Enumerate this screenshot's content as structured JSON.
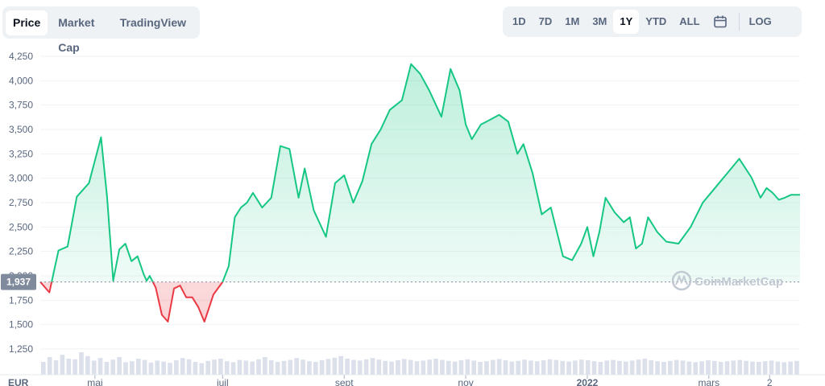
{
  "tabs": [
    {
      "label": "Price",
      "active": true
    },
    {
      "label": "Market Cap",
      "active": false
    },
    {
      "label": "TradingView",
      "active": false
    }
  ],
  "ranges": [
    {
      "label": "1D",
      "active": false
    },
    {
      "label": "7D",
      "active": false
    },
    {
      "label": "1M",
      "active": false
    },
    {
      "label": "3M",
      "active": false
    },
    {
      "label": "1Y",
      "active": true
    },
    {
      "label": "YTD",
      "active": false
    },
    {
      "label": "ALL",
      "active": false
    }
  ],
  "calendar_icon": "calendar-icon",
  "log_label": "LOG",
  "watermark": "CoinMarketCap",
  "colors": {
    "up": "#16c784",
    "down": "#ea3943",
    "grid": "#eff2f5",
    "volume": "#cfd6e4",
    "baseline_label_bg": "#808a9d"
  },
  "chart_data": {
    "type": "area",
    "currency_label": "EUR",
    "y_ticks": [
      "1,250",
      "1,500",
      "1,750",
      "2,000",
      "2,250",
      "2,500",
      "2,750",
      "3,000",
      "3,250",
      "3,500",
      "3,750",
      "4,000",
      "4,250"
    ],
    "ylim": [
      1250,
      4250
    ],
    "baseline_value": 1937,
    "baseline_label": "1,937",
    "x_ticks": [
      {
        "label": "mai",
        "x": 0.9
      },
      {
        "label": "juil",
        "x": 3
      },
      {
        "label": "sept",
        "x": 5
      },
      {
        "label": "nov",
        "x": 7
      },
      {
        "label": "2022",
        "x": 9
      },
      {
        "label": "mars",
        "x": 11
      },
      {
        "label": "2",
        "x": 12
      }
    ],
    "xlim": [
      0,
      12.5
    ],
    "series": [
      {
        "x": [
          0,
          0.15,
          0.3,
          0.45,
          0.6,
          0.8,
          1,
          1.1,
          1.2,
          1.3,
          1.4,
          1.5,
          1.6,
          1.7,
          1.75,
          1.8,
          1.9,
          2,
          2.1,
          2.2,
          2.3,
          2.4,
          2.5,
          2.6,
          2.7,
          2.85,
          3,
          3.1,
          3.2,
          3.3,
          3.4,
          3.5,
          3.65,
          3.8,
          3.95,
          4.1,
          4.25,
          4.35,
          4.5,
          4.7,
          4.85,
          5,
          5.15,
          5.3,
          5.45,
          5.6,
          5.75,
          5.95,
          6.1,
          6.25,
          6.4,
          6.6,
          6.75,
          6.9,
          7,
          7.1,
          7.25,
          7.4,
          7.55,
          7.7,
          7.85,
          7.95,
          8.1,
          8.25,
          8.4,
          8.6,
          8.75,
          8.9,
          9,
          9.1,
          9.2,
          9.3,
          9.45,
          9.6,
          9.7,
          9.8,
          9.9,
          10,
          10.15,
          10.3,
          10.5,
          10.7,
          10.9,
          11.1,
          11.3,
          11.5,
          11.7,
          11.85,
          11.95,
          12.05,
          12.15,
          12.25,
          12.35,
          12.5
        ],
        "y": [
          1937,
          1830,
          2260,
          2300,
          2810,
          2950,
          3420,
          2800,
          1950,
          2270,
          2330,
          2150,
          2200,
          2020,
          1950,
          2000,
          1880,
          1600,
          1530,
          1870,
          1900,
          1780,
          1780,
          1680,
          1530,
          1810,
          1937,
          2100,
          2600,
          2700,
          2750,
          2850,
          2700,
          2800,
          3330,
          3300,
          2800,
          3100,
          2670,
          2400,
          2950,
          3030,
          2750,
          2970,
          3350,
          3500,
          3700,
          3800,
          4170,
          4070,
          3900,
          3630,
          4120,
          3900,
          3550,
          3400,
          3550,
          3600,
          3650,
          3580,
          3250,
          3350,
          3050,
          2630,
          2700,
          2200,
          2160,
          2330,
          2500,
          2200,
          2450,
          2800,
          2650,
          2550,
          2600,
          2280,
          2330,
          2600,
          2450,
          2350,
          2330,
          2500,
          2750,
          2900,
          3050,
          3200,
          3010,
          2800,
          2900,
          2850,
          2780,
          2800,
          2830,
          2830
        ]
      }
    ],
    "volume": [
      0.4,
      0.55,
      0.45,
      0.62,
      0.5,
      0.48,
      0.7,
      0.58,
      0.44,
      0.52,
      0.4,
      0.47,
      0.55,
      0.39,
      0.42,
      0.5,
      0.46,
      0.38,
      0.44,
      0.41,
      0.37,
      0.45,
      0.52,
      0.48,
      0.4,
      0.36,
      0.43,
      0.47,
      0.5,
      0.42,
      0.39,
      0.46,
      0.44,
      0.41,
      0.48,
      0.55,
      0.45,
      0.4,
      0.43,
      0.46,
      0.52,
      0.47,
      0.42,
      0.4,
      0.45,
      0.49,
      0.53,
      0.58,
      0.5,
      0.46,
      0.44,
      0.48,
      0.52,
      0.47,
      0.43,
      0.41,
      0.45,
      0.49,
      0.46,
      0.42,
      0.44,
      0.47,
      0.5,
      0.46,
      0.43,
      0.41,
      0.45,
      0.48,
      0.44,
      0.4,
      0.42,
      0.46,
      0.49,
      0.45,
      0.41,
      0.43,
      0.47,
      0.44,
      0.42,
      0.45,
      0.48,
      0.46,
      0.43,
      0.41,
      0.44,
      0.47,
      0.45,
      0.42,
      0.4,
      0.44,
      0.46,
      0.43,
      0.41,
      0.44,
      0.47,
      0.5,
      0.45,
      0.42,
      0.4,
      0.43,
      0.46,
      0.44,
      0.41,
      0.39,
      0.42,
      0.45,
      0.43,
      0.4,
      0.42,
      0.44,
      0.46,
      0.43,
      0.41,
      0.4,
      0.42,
      0.44,
      0.41,
      0.39,
      0.41,
      0.43
    ]
  }
}
